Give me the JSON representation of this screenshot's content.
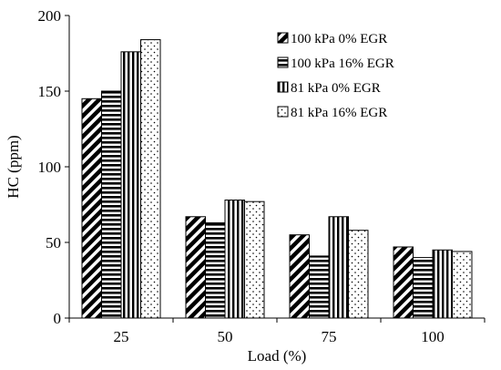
{
  "chart_data": {
    "type": "bar",
    "title": "",
    "xlabel": "Load (%)",
    "ylabel": "HC (ppm)",
    "ylim": [
      0,
      200
    ],
    "yticks": [
      0,
      50,
      100,
      150,
      200
    ],
    "categories": [
      "25",
      "50",
      "75",
      "100"
    ],
    "grid": false,
    "legend_position": "top-right",
    "series": [
      {
        "name": "100 kPa 0% EGR",
        "values": [
          145,
          67,
          55,
          47
        ],
        "pattern": "diagonal-stripes"
      },
      {
        "name": "100 kPa 16% EGR",
        "values": [
          150,
          63,
          41,
          40
        ],
        "pattern": "horizontal-stripes"
      },
      {
        "name": "81 kPa 0% EGR",
        "values": [
          176,
          78,
          67,
          45
        ],
        "pattern": "vertical-stripes"
      },
      {
        "name": "81 kPa 16% EGR",
        "values": [
          184,
          77,
          58,
          44
        ],
        "pattern": "dots"
      }
    ]
  }
}
